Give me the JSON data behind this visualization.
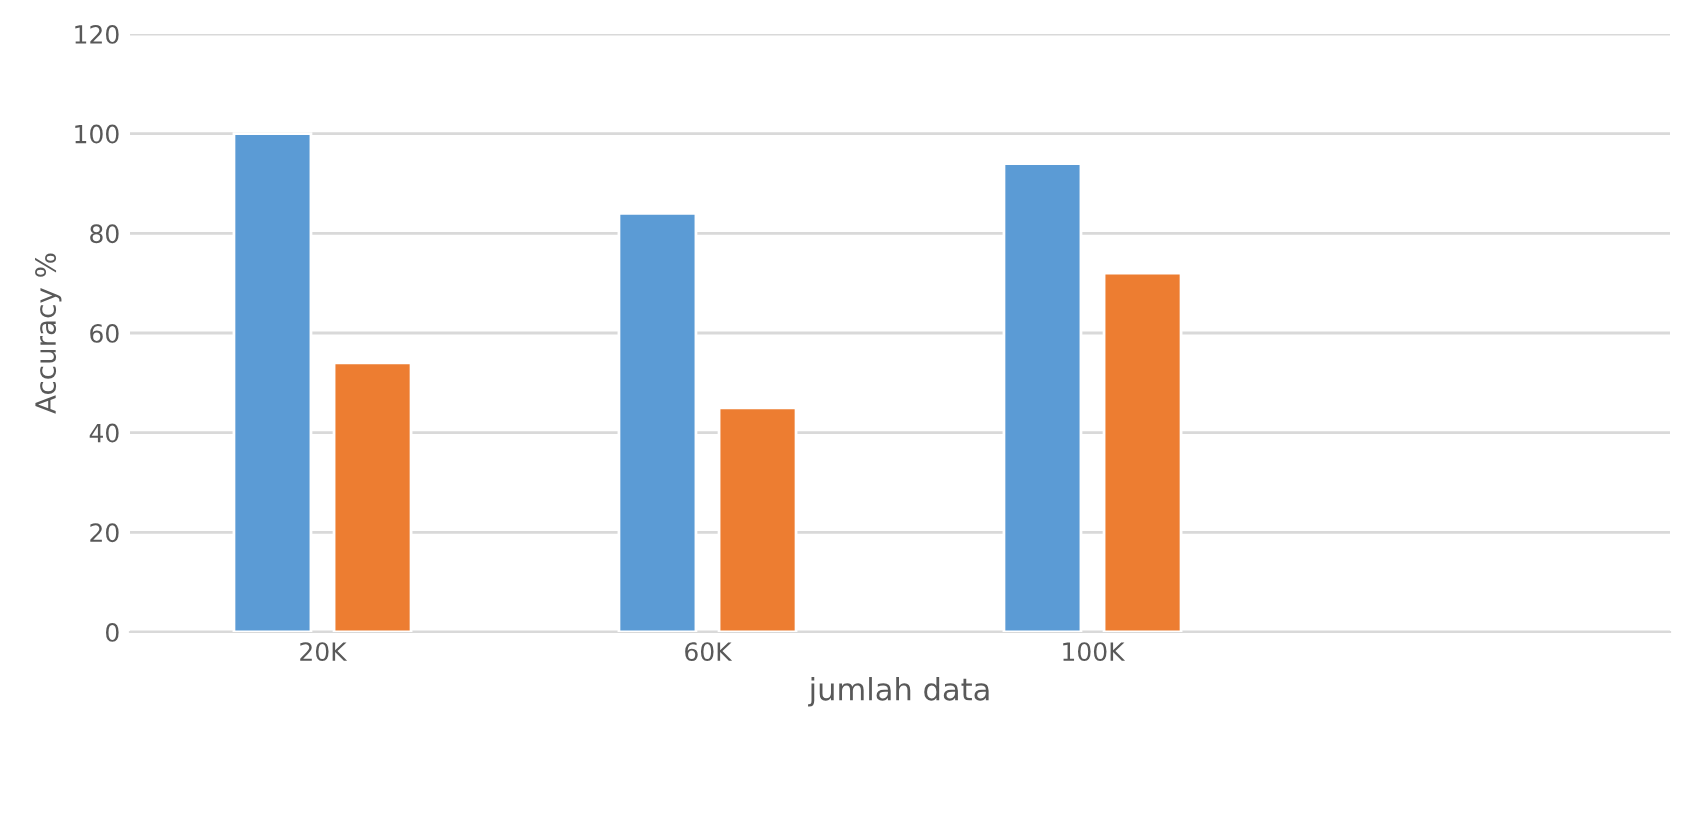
{
  "chart_data": {
    "type": "bar",
    "xlabel": "jumlah data",
    "ylabel": "Accuracy %",
    "categories": [
      "20K",
      "60K",
      "100K",
      null
    ],
    "series": [
      {
        "color": "#5b9bd5",
        "values": [
          100,
          84,
          94,
          null
        ]
      },
      {
        "color": "#ed7d31",
        "values": [
          54,
          45,
          72,
          null
        ]
      }
    ],
    "ylim": [
      0,
      120
    ],
    "yticks": [
      0,
      20,
      40,
      60,
      80,
      100,
      120
    ],
    "grid": "y",
    "legend": false
  }
}
